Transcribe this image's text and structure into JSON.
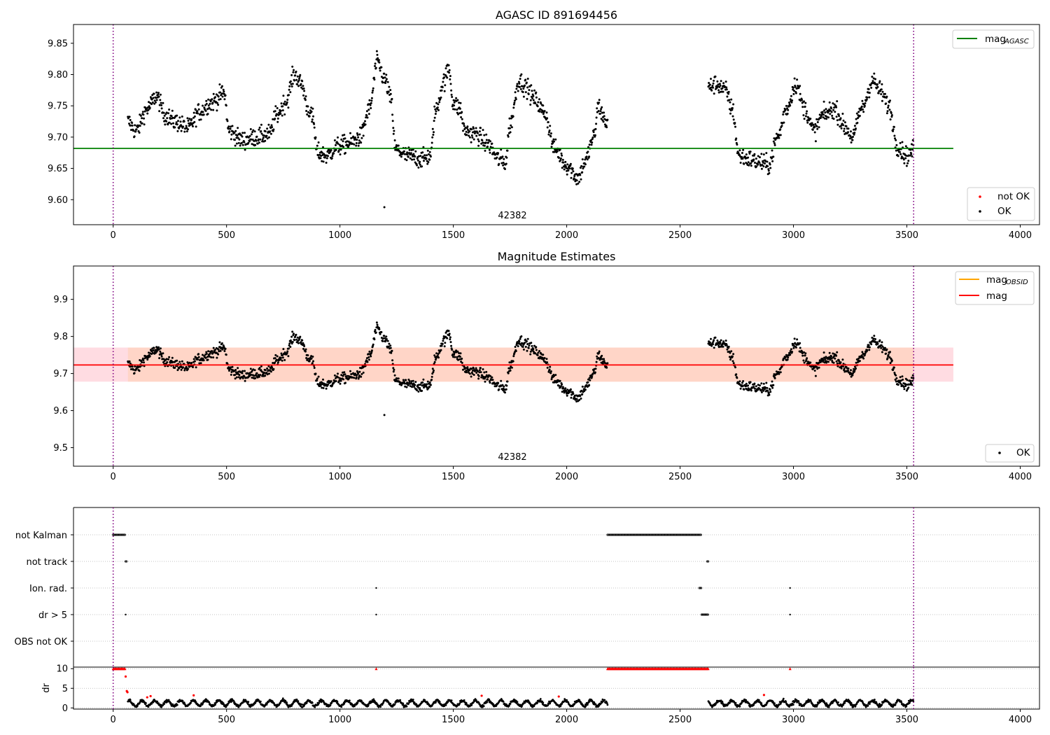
{
  "figure": {
    "panel1_title": "AGASC ID 891694456",
    "panel2_title": "Magnitude Estimates"
  },
  "chart_data": [
    {
      "type": "scatter",
      "title": "AGASC ID 891694456",
      "xlim": [
        -175,
        4085
      ],
      "ylim": [
        9.56,
        9.88
      ],
      "x_ticks": [
        "0",
        "500",
        "1000",
        "1500",
        "2000",
        "2500",
        "3000",
        "3500",
        "4000"
      ],
      "y_ticks": [
        "9.60",
        "9.65",
        "9.70",
        "9.75",
        "9.80",
        "9.85"
      ],
      "obsid_label": "42382",
      "obsid_label_x": 1760,
      "obs_boundaries": [
        0,
        3530
      ],
      "reference_lines": [
        {
          "name": "mag_AGASC",
          "value": 9.682,
          "x_range": [
            -175,
            3705
          ],
          "color": "#008000"
        }
      ],
      "legend_top": [
        {
          "label": "mag",
          "subscript": "AGASC",
          "color": "#008000"
        }
      ],
      "legend_bottom": [
        {
          "label": "not OK",
          "color": "#ff0000"
        },
        {
          "label": "OK",
          "color": "#000000"
        }
      ],
      "series": [
        {
          "name": "OK",
          "color": "#000000",
          "segments": [
            [
              65,
              2180
            ],
            [
              2625,
              3530
            ]
          ],
          "outliers": [
            [
              1196,
              9.588
            ]
          ]
        }
      ],
      "grid": false,
      "legend_position": "top-right / lower-right"
    },
    {
      "type": "scatter",
      "title": "Magnitude Estimates",
      "xlim": [
        -175,
        4085
      ],
      "ylim": [
        9.45,
        9.99
      ],
      "x_ticks": [
        "0",
        "500",
        "1000",
        "1500",
        "2000",
        "2500",
        "3000",
        "3500",
        "4000"
      ],
      "y_ticks": [
        "9.5",
        "9.6",
        "9.7",
        "9.8",
        "9.9"
      ],
      "obsid_label": "42382",
      "obsid_label_x": 1760,
      "obs_boundaries": [
        0,
        3530
      ],
      "reference_lines": [
        {
          "name": "mag",
          "value": 9.723,
          "x_range": [
            -175,
            3705
          ],
          "color": "#ff0000"
        }
      ],
      "bands": [
        {
          "name": "mag",
          "low": 9.678,
          "high": 9.77,
          "x_range": [
            -175,
            3705
          ],
          "color": "#ffc0cb"
        },
        {
          "name": "mag_OBSID",
          "low": 9.678,
          "high": 9.77,
          "x_range": [
            65,
            3530
          ],
          "color": "#ffd0b0"
        }
      ],
      "legend_top": [
        {
          "label": "mag",
          "subscript": "OBSID",
          "color": "#ffa500"
        },
        {
          "label": "mag",
          "subscript": "",
          "color": "#ff0000"
        }
      ],
      "legend_bottom": [
        {
          "label": "OK",
          "color": "#000000"
        }
      ],
      "series": [
        {
          "name": "OK",
          "color": "#000000",
          "segments": [
            [
              65,
              2180
            ],
            [
              2625,
              3530
            ]
          ],
          "outliers": [
            [
              1196,
              9.588
            ]
          ]
        }
      ],
      "grid": false,
      "legend_position": "top-right / lower-right"
    },
    {
      "type": "scatter",
      "title": "",
      "xlim": [
        -175,
        4085
      ],
      "categories": [
        "not Kalman",
        "not track",
        "Ion. rad.",
        "dr > 5",
        "OBS not OK"
      ],
      "flags": [
        {
          "category": "not Kalman",
          "ranges": [
            [
              0,
              55
            ],
            [
              2180,
              2595
            ]
          ]
        },
        {
          "category": "not track",
          "ranges": [
            [
              55,
              60
            ],
            [
              2620,
              2625
            ]
          ]
        },
        {
          "category": "Ion. rad.",
          "ranges": [
            [
              1160,
              1160
            ],
            [
              2585,
              2595
            ],
            [
              2985,
              2985
            ]
          ]
        },
        {
          "category": "dr > 5",
          "ranges": [
            [
              55,
              55
            ],
            [
              1160,
              1160
            ],
            [
              2595,
              2625
            ],
            [
              2985,
              2985
            ]
          ]
        },
        {
          "category": "OBS not OK",
          "ranges": []
        }
      ],
      "grid": true,
      "obs_boundaries": [
        0,
        3530
      ]
    },
    {
      "type": "scatter",
      "title": "",
      "xlim": [
        -175,
        4085
      ],
      "ylim": [
        -0.3,
        10.4
      ],
      "ylabel": "dr",
      "x_ticks": [
        "0",
        "500",
        "1000",
        "1500",
        "2000",
        "2500",
        "3000",
        "3500",
        "4000"
      ],
      "y_ticks": [
        "0",
        "5",
        "10"
      ],
      "clipped_value": 10,
      "clipped_ranges": [
        [
          0,
          55
        ],
        [
          1160,
          1160
        ],
        [
          2180,
          2625
        ],
        [
          2985,
          2985
        ]
      ],
      "red_points": [
        [
          55,
          8
        ],
        [
          60,
          4.3
        ],
        [
          63,
          4.0
        ],
        [
          150,
          2.7
        ],
        [
          165,
          3.0
        ],
        [
          355,
          3.2
        ],
        [
          1625,
          3.1
        ],
        [
          1965,
          2.9
        ],
        [
          2870,
          3.3
        ]
      ],
      "series": [
        {
          "name": "dr",
          "color": "#000000",
          "segments": [
            [
              65,
              2180
            ],
            [
              2625,
              3530
            ]
          ]
        }
      ],
      "grid": true,
      "obs_boundaries": [
        0,
        3530
      ]
    }
  ]
}
